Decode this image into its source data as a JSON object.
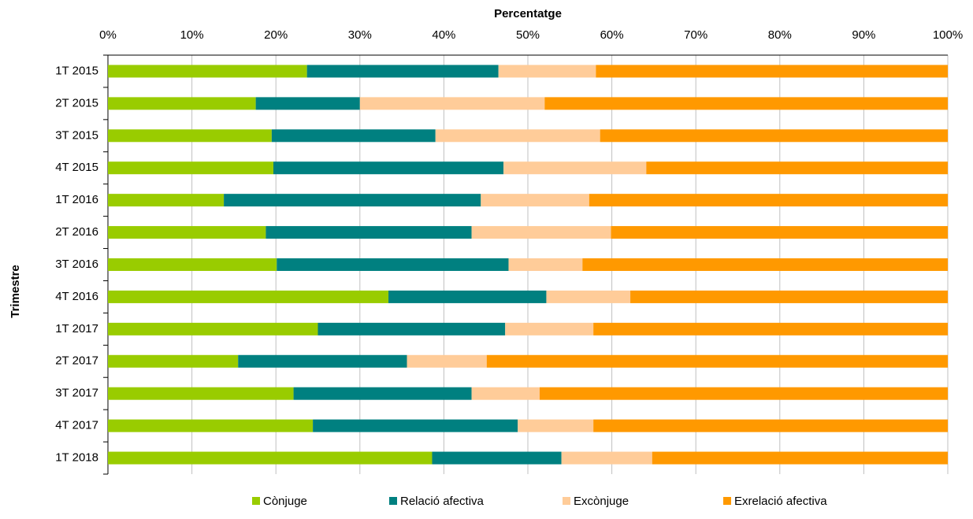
{
  "chart_data": {
    "type": "stacked_bar_horizontal",
    "x_axis_label": "Percentatge",
    "y_axis_label": "Trimestre",
    "categories": [
      "1T 2015",
      "2T 2015",
      "3T 2015",
      "4T 2015",
      "1T 2016",
      "2T 2016",
      "3T 2016",
      "4T 2016",
      "1T 2017",
      "2T 2017",
      "3T 2017",
      "4T 2017",
      "1T 2018"
    ],
    "series": [
      {
        "name": "Cònjuge",
        "color": "#99cc00",
        "values": [
          23.7,
          17.6,
          19.5,
          19.7,
          13.8,
          18.8,
          20.1,
          33.4,
          25.0,
          15.5,
          22.1,
          24.4,
          38.6
        ]
      },
      {
        "name": "Relació afectiva",
        "color": "#008080",
        "values": [
          22.8,
          12.4,
          19.5,
          27.4,
          30.6,
          24.5,
          27.6,
          18.8,
          22.3,
          20.1,
          21.2,
          24.4,
          15.4
        ]
      },
      {
        "name": "Excònjuge",
        "color": "#ffcc99",
        "values": [
          11.6,
          22.0,
          19.6,
          17.0,
          12.9,
          16.6,
          8.8,
          10.0,
          10.5,
          9.5,
          8.1,
          9.0,
          10.8
        ]
      },
      {
        "name": "Exrelació afectiva",
        "color": "#ff9900",
        "values": [
          41.9,
          48.0,
          41.4,
          35.9,
          42.7,
          40.1,
          43.5,
          37.8,
          42.2,
          54.9,
          48.6,
          42.2,
          35.2
        ]
      }
    ],
    "xlim": [
      0,
      100
    ],
    "xticks": [
      {
        "value": 0,
        "label": "0%"
      },
      {
        "value": 10,
        "label": "10%"
      },
      {
        "value": 20,
        "label": "20%"
      },
      {
        "value": 30,
        "label": "30%"
      },
      {
        "value": 40,
        "label": "40%"
      },
      {
        "value": 50,
        "label": "50%"
      },
      {
        "value": 60,
        "label": "60%"
      },
      {
        "value": 70,
        "label": "70%"
      },
      {
        "value": 80,
        "label": "80%"
      },
      {
        "value": 90,
        "label": "90%"
      },
      {
        "value": 100,
        "label": "100%"
      }
    ],
    "grid": true,
    "legend": "bottom"
  }
}
